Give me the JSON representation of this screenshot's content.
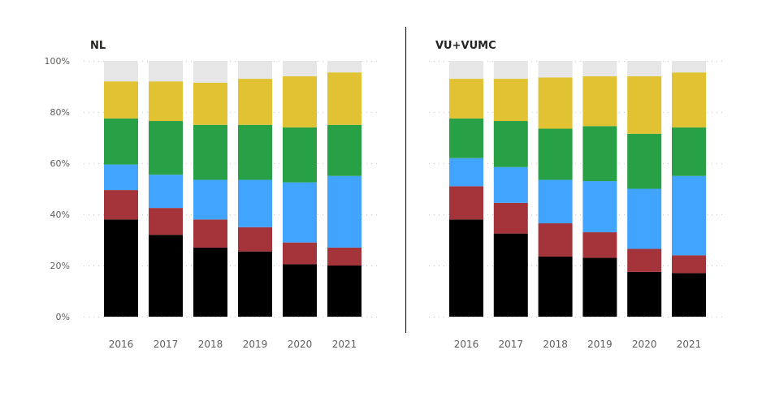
{
  "chart_data": [
    {
      "type": "bar",
      "stacked": true,
      "normalized": true,
      "title": "NL",
      "categories": [
        "2016",
        "2017",
        "2018",
        "2019",
        "2020",
        "2021"
      ],
      "y_ticks": [
        "0%",
        "20%",
        "40%",
        "60%",
        "80%",
        "100%"
      ],
      "ylim": [
        0,
        100
      ],
      "grid": true,
      "series": [
        {
          "color": "#000000",
          "values": [
            38,
            32,
            27,
            25.5,
            20.5,
            20
          ]
        },
        {
          "color": "#a4343a",
          "values": [
            11.5,
            10.5,
            11,
            9.5,
            8.5,
            7
          ]
        },
        {
          "color": "#41a5ff",
          "values": [
            10,
            13,
            15.5,
            18.5,
            23.5,
            28
          ]
        },
        {
          "color": "#28a045",
          "values": [
            18,
            21,
            21.5,
            21.5,
            21.5,
            20
          ]
        },
        {
          "color": "#e0c232",
          "values": [
            14.5,
            15.5,
            16.5,
            18,
            20,
            20.5
          ]
        },
        {
          "color": "#e6e6e6",
          "values": [
            8,
            8,
            8.5,
            7,
            6,
            4.5
          ]
        }
      ]
    },
    {
      "type": "bar",
      "stacked": true,
      "normalized": true,
      "title": "VU+VUMC",
      "categories": [
        "2016",
        "2017",
        "2018",
        "2019",
        "2020",
        "2021"
      ],
      "y_ticks": [],
      "ylim": [
        0,
        100
      ],
      "grid": true,
      "series": [
        {
          "color": "#000000",
          "values": [
            38,
            32.5,
            23.5,
            23,
            17.5,
            17
          ]
        },
        {
          "color": "#a4343a",
          "values": [
            13,
            12,
            13,
            10,
            9,
            7
          ]
        },
        {
          "color": "#41a5ff",
          "values": [
            11,
            14,
            17,
            20,
            23.5,
            31
          ]
        },
        {
          "color": "#28a045",
          "values": [
            15.5,
            18,
            20,
            21.5,
            21.5,
            19
          ]
        },
        {
          "color": "#e0c232",
          "values": [
            15.5,
            16.5,
            20,
            19.5,
            22.5,
            21.5
          ]
        },
        {
          "color": "#e6e6e6",
          "values": [
            7,
            7,
            6.5,
            6,
            6,
            4.5
          ]
        }
      ]
    }
  ]
}
